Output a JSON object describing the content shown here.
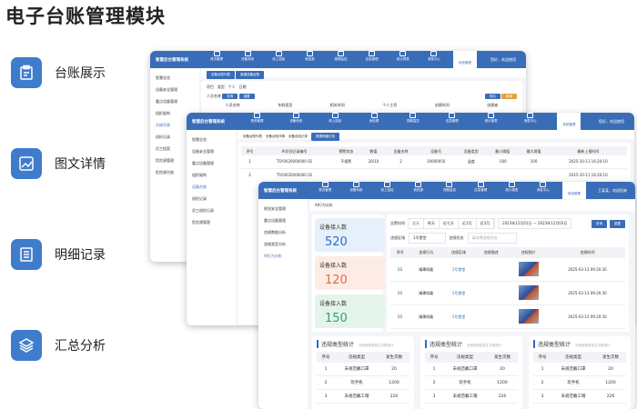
{
  "page": {
    "title": "电子台账管理模块"
  },
  "features": [
    {
      "icon": "clipboard-icon",
      "label": "台账展示"
    },
    {
      "icon": "image-chart-icon",
      "label": "图文详情"
    },
    {
      "icon": "document-list-icon",
      "label": "明细记录"
    },
    {
      "icon": "layers-icon",
      "label": "汇总分析"
    }
  ],
  "app": {
    "name": "智慧后台管理系统",
    "nav": [
      "首页管理",
      "设备系统",
      "线上巡检",
      "危险源",
      "视频监控",
      "应急管理",
      "统计报表",
      "消息中心",
      "系统管理"
    ],
    "user_back": "您好，欢迎使用",
    "user_front": "王某某，欢迎回来"
  },
  "win1": {
    "sidebar": [
      "智慧总览",
      "设备安全管理",
      "重点设备管理",
      "组织架构",
      "台账列表",
      "巡检记录",
      "员工档案",
      "危险源管理",
      "危险源台账"
    ],
    "breadcrumb": [
      "设备台账列表",
      "新增设备台账"
    ],
    "filters": {
      "project": "项目",
      "type": "类型",
      "person": "个人",
      "date": "日期",
      "name": "人员名称"
    },
    "search": "查询",
    "reset": "重置",
    "export": "导出",
    "add": "新增",
    "columns": [
      "人员名称",
      "年龄类型",
      "相关时间",
      "个人工资",
      "创建时间",
      "创建者"
    ]
  },
  "win2": {
    "sidebar": [
      "智慧总览",
      "设备安全管理",
      "重点设备管理",
      "组织架构",
      "设备台账",
      "巡检记录",
      "员工巡检记录",
      "危险源管理"
    ],
    "breadcrumb": [
      "设备台账列表",
      "设备台账详情",
      "设备巡检记录",
      "数据明细记录"
    ],
    "columns": [
      "序号",
      "AI识别记录编号",
      "预警状态",
      "数值",
      "设备名称",
      "设备号",
      "设备类型",
      "最小阈值",
      "最大阈值",
      "最新上报时间"
    ],
    "rows": [
      [
        "1",
        "TSY0020000000 02",
        "不报警",
        "20/10",
        "2",
        "10000050",
        "温度",
        "-100",
        "100",
        "2025-10-11 16:20:10"
      ],
      [
        "2",
        "TSY0020000000 02",
        "",
        "",
        "",
        "",
        "",
        "",
        "",
        "2025-10-11 16:20:10"
      ],
      [
        "3",
        "TSY0020000000 02",
        "",
        "",
        "",
        "",
        "",
        "",
        "",
        ""
      ],
      [
        "4",
        "TSY0020000000 02",
        "",
        "",
        "",
        "",
        "",
        "",
        "",
        ""
      ]
    ]
  },
  "win3": {
    "sidebar": [
      "视觉安全管理",
      "重点设备管理",
      "违规数据分析",
      "违规类型分析",
      "AI行为分析"
    ],
    "breadcrumb": "AI行为分析",
    "cards": [
      {
        "label": "设备接入数",
        "value": "520",
        "color": "#2d6cc0",
        "bg": "#e6f0fb"
      },
      {
        "label": "设备接入数",
        "value": "120",
        "color": "#e8673f",
        "bg": "#fdece6"
      },
      {
        "label": "设备接入数",
        "value": "150",
        "color": "#2aa66b",
        "bg": "#e4f4ec"
      }
    ],
    "filter": {
      "time_label": "告警时间",
      "ranges": [
        "全天",
        "昨天",
        "近七天",
        "近1月",
        "近3月"
      ],
      "date_range": "2023年12月01日 — 2023年12月03日",
      "area_label": "违规区域",
      "area_value": "1号食堂",
      "task_label": "违规任务",
      "task_placeholder": "请选择违规任务",
      "search": "查询",
      "reset": "重置"
    },
    "columns": [
      "序号",
      "违规行为",
      "违规区域",
      "违规描述",
      "违规图片",
      "违规时间"
    ],
    "rows": [
      [
        "01",
        "嘴罩佩戴",
        "1号食堂",
        "",
        "",
        "2025-03-13 09:20:30"
      ],
      [
        "01",
        "嘴罩佩戴",
        "1号食堂",
        "",
        "",
        "2025-03-13 09:20:30"
      ],
      [
        "01",
        "嘴罩佩戴",
        "1号食堂",
        "",
        "",
        "2025-03-13 09:20:30"
      ],
      [
        "01",
        "嘴罩佩戴",
        "1号食堂",
        "",
        "",
        "2025-03-13 09:20:30"
      ]
    ],
    "stats": [
      {
        "title": "违规类型统计",
        "subtitle": "对违规类型发生次数统计",
        "columns": [
          "序号",
          "违规类型",
          "发生次数"
        ],
        "rows": [
          [
            "1",
            "未规范戴口罩",
            "20"
          ],
          [
            "2",
            "玩手机",
            "1200"
          ],
          [
            "3",
            "未规范戴工帽",
            "226"
          ]
        ]
      },
      {
        "title": "违规类型统计",
        "subtitle": "对违规类型发生次数统计",
        "columns": [
          "序号",
          "违规类型",
          "发生次数"
        ],
        "rows": [
          [
            "1",
            "未规范戴口罩",
            "20"
          ],
          [
            "2",
            "玩手机",
            "1200"
          ],
          [
            "3",
            "未规范戴工帽",
            "226"
          ]
        ]
      },
      {
        "title": "违规类型统计",
        "subtitle": "对违规类型发生次数统计",
        "columns": [
          "序号",
          "违规类型",
          "发生次数"
        ],
        "rows": [
          [
            "1",
            "未规范戴口罩",
            "20"
          ],
          [
            "2",
            "玩手机",
            "1200"
          ],
          [
            "3",
            "未规范戴工帽",
            "226"
          ]
        ]
      }
    ]
  }
}
